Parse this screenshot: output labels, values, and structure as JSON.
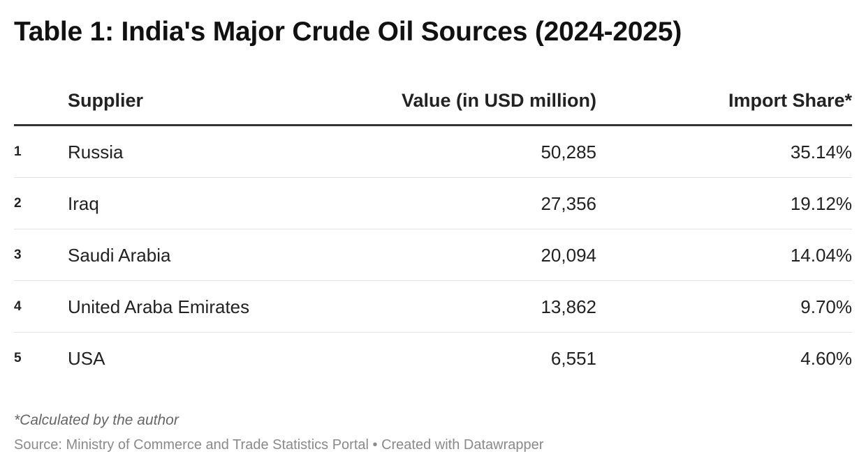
{
  "title": "Table 1: India's Major Crude Oil Sources (2024-2025)",
  "chart_data": {
    "type": "table",
    "title": "Table 1: India's Major Crude Oil Sources (2024-2025)",
    "columns": [
      "Supplier",
      "Value (in USD million)",
      "Import Share*"
    ],
    "rows": [
      {
        "rank": "1",
        "supplier": "Russia",
        "value": "50,285",
        "share": "35.14%"
      },
      {
        "rank": "2",
        "supplier": "Iraq",
        "value": "27,356",
        "share": "19.12%"
      },
      {
        "rank": "3",
        "supplier": "Saudi Arabia",
        "value": "20,094",
        "share": "14.04%"
      },
      {
        "rank": "4",
        "supplier": "United Araba Emirates",
        "value": "13,862",
        "share": "9.70%"
      },
      {
        "rank": "5",
        "supplier": "USA",
        "value": "6,551",
        "share": "4.60%"
      }
    ]
  },
  "footer": {
    "note": "*Calculated by the author",
    "source": "Source: Ministry of Commerce and Trade Statistics Portal • Created with Datawrapper"
  },
  "colors": {
    "text": "#222222",
    "header_rule": "#333333",
    "row_rule": "#e3e3e3",
    "note": "#666666",
    "source": "#8a8a8a"
  }
}
